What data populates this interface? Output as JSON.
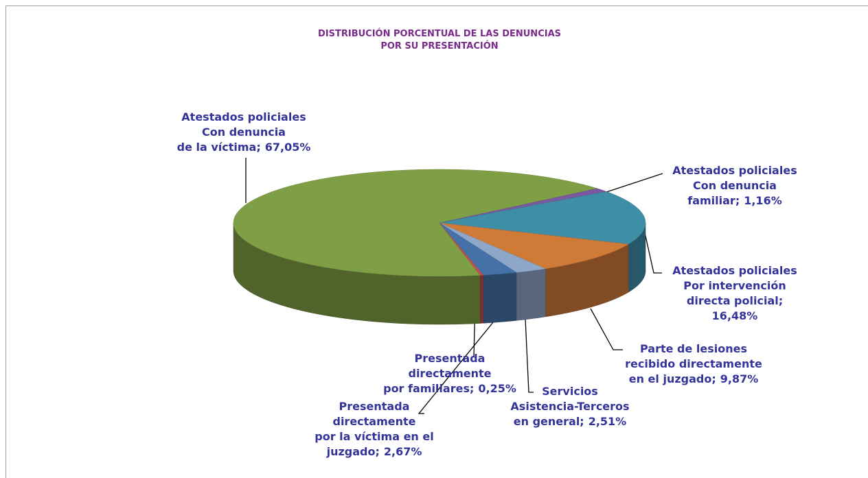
{
  "chart_data": {
    "type": "pie3d",
    "title": [
      "DISTRIBUCIÓN PORCENTUAL DE LAS DENUNCIAS",
      "POR SU PRESENTACIÓN"
    ],
    "categories": [
      [
        "Atestados policiales",
        "Con denuncia",
        "de la víctima;"
      ],
      [
        "Atestados policiales",
        "Con denuncia",
        "familiar;"
      ],
      [
        "Atestados policiales",
        "Por intervención",
        "directa policial;"
      ],
      [
        "Parte de lesiones",
        "recibido directamente",
        "en el juzgado;"
      ],
      [
        "Servicios",
        "Asistencia-Terceros",
        "en general;"
      ],
      [
        "Presentada",
        "directamente",
        "por la víctima en el",
        "juzgado;"
      ],
      [
        "Presentada",
        "directamente",
        "por familiares;"
      ]
    ],
    "values": [
      67.05,
      1.16,
      16.48,
      9.87,
      2.51,
      2.67,
      0.25
    ],
    "value_labels": [
      "67,05%",
      "1,16%",
      "16,48%",
      "9,87%",
      "2,51%",
      "2,67%",
      "0,25%"
    ],
    "colors": [
      "#7f9f46",
      "#7b59a0",
      "#3e8ea8",
      "#d07a38",
      "#8ea6c8",
      "#4472a8",
      "#c0504d"
    ]
  }
}
